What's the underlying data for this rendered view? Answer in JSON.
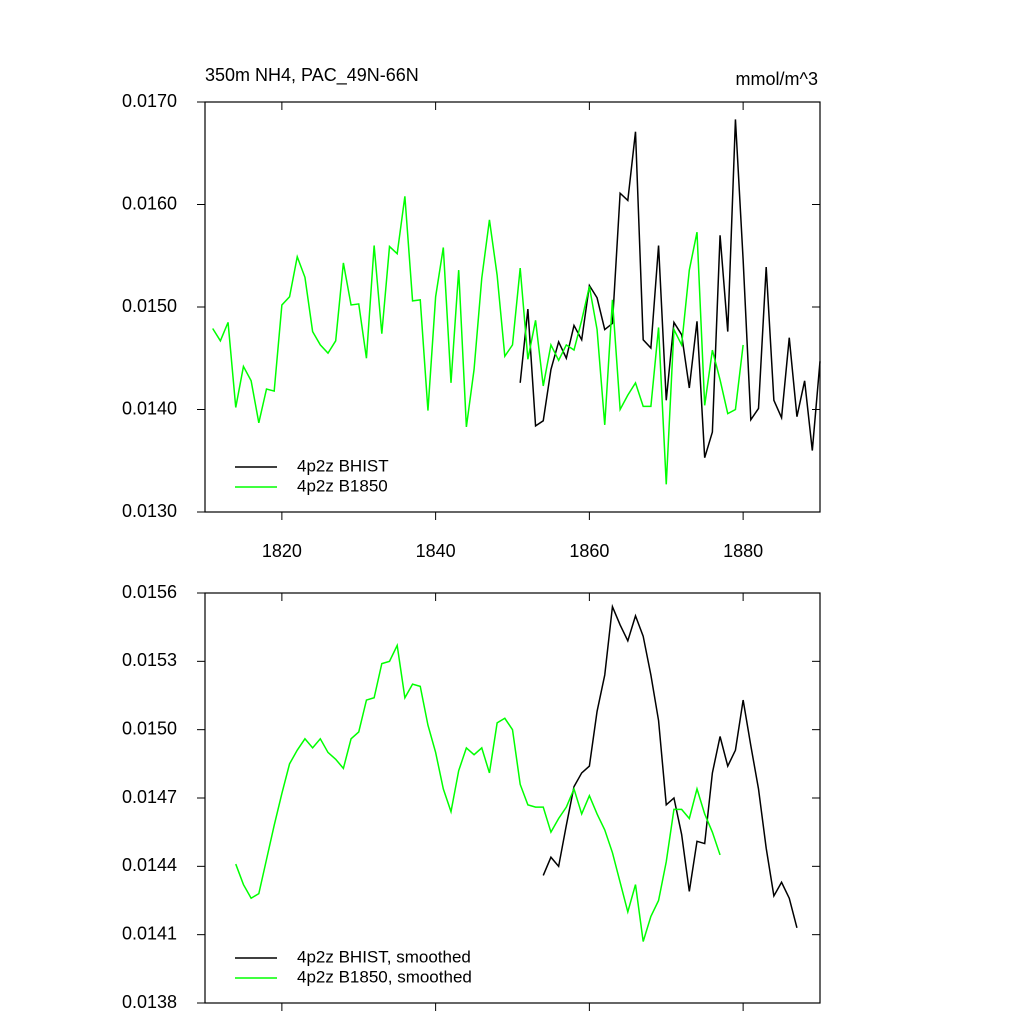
{
  "chart_data": [
    {
      "type": "line",
      "title": "350m NH4, PAC_49N-66N",
      "units": "mmol/m^3",
      "x": [
        1811,
        1812,
        1813,
        1814,
        1815,
        1816,
        1817,
        1818,
        1819,
        1820,
        1821,
        1822,
        1823,
        1824,
        1825,
        1826,
        1827,
        1828,
        1829,
        1830,
        1831,
        1832,
        1833,
        1834,
        1835,
        1836,
        1837,
        1838,
        1839,
        1840,
        1841,
        1842,
        1843,
        1844,
        1845,
        1846,
        1847,
        1848,
        1849,
        1850,
        1851,
        1852,
        1853,
        1854,
        1855,
        1856,
        1857,
        1858,
        1859,
        1860,
        1861,
        1862,
        1863,
        1864,
        1865,
        1866,
        1867,
        1868,
        1869,
        1870,
        1871,
        1872,
        1873,
        1874,
        1875,
        1876,
        1877,
        1878,
        1879,
        1880,
        1881,
        1882,
        1883,
        1884,
        1885,
        1886,
        1887,
        1888,
        1889,
        1890
      ],
      "series": [
        {
          "name": "4p2z BHIST",
          "color": "#000000",
          "values": [
            null,
            null,
            null,
            null,
            null,
            null,
            null,
            null,
            null,
            null,
            null,
            null,
            null,
            null,
            null,
            null,
            null,
            null,
            null,
            null,
            null,
            null,
            null,
            null,
            null,
            null,
            null,
            null,
            null,
            null,
            null,
            null,
            null,
            null,
            null,
            null,
            null,
            null,
            null,
            null,
            0.01426,
            0.01498,
            0.01384,
            0.01389,
            0.01439,
            0.01466,
            0.0145,
            0.01482,
            0.01468,
            0.01521,
            0.01509,
            0.01478,
            0.01484,
            0.01611,
            0.01604,
            0.01671,
            0.01468,
            0.0146,
            0.0156,
            0.01409,
            0.01485,
            0.01473,
            0.01421,
            0.01486,
            0.01353,
            0.01378,
            0.0157,
            0.01476,
            0.01683,
            0.01546,
            0.0139,
            0.01401,
            0.01539,
            0.01409,
            0.01392,
            0.0147,
            0.01393,
            0.01428,
            0.0136,
            0.01447
          ]
        },
        {
          "name": "4p2z B1850",
          "color": "#00ff00",
          "values": [
            0.01479,
            0.01467,
            0.01485,
            0.01402,
            0.01442,
            0.01428,
            0.01387,
            0.0142,
            0.01418,
            0.01502,
            0.0151,
            0.01549,
            0.01529,
            0.01476,
            0.01463,
            0.01455,
            0.01467,
            0.01543,
            0.01502,
            0.01503,
            0.0145,
            0.0156,
            0.01474,
            0.01559,
            0.01552,
            0.01608,
            0.01506,
            0.01507,
            0.01399,
            0.0151,
            0.01558,
            0.01426,
            0.01536,
            0.01383,
            0.01439,
            0.01528,
            0.01585,
            0.01531,
            0.01452,
            0.01463,
            0.01538,
            0.01449,
            0.01487,
            0.01423,
            0.01463,
            0.01448,
            0.01463,
            0.01458,
            0.01487,
            0.0152,
            0.01478,
            0.01385,
            0.01507,
            0.014,
            0.01414,
            0.01426,
            0.01403,
            0.01403,
            0.0148,
            0.01327,
            0.01478,
            0.01463,
            0.01536,
            0.01573,
            0.01404,
            0.01458,
            0.01429,
            0.01396,
            0.014,
            0.01463,
            null,
            null,
            null,
            null,
            null,
            null,
            null,
            null,
            null,
            null
          ]
        }
      ],
      "xlim": [
        1810,
        1890
      ],
      "xticks": [
        1820,
        1840,
        1860,
        1880
      ],
      "ylim": [
        0.013,
        0.017
      ],
      "yticks": [
        {
          "value": 0.013,
          "label": "0.0130"
        },
        {
          "value": 0.014,
          "label": "0.0140"
        },
        {
          "value": 0.015,
          "label": "0.0150"
        },
        {
          "value": 0.016,
          "label": "0.0160"
        },
        {
          "value": 0.017,
          "label": "0.0170"
        }
      ],
      "legend": "lower left"
    },
    {
      "type": "line",
      "x": [
        1814,
        1815,
        1816,
        1817,
        1818,
        1819,
        1820,
        1821,
        1822,
        1823,
        1824,
        1825,
        1826,
        1827,
        1828,
        1829,
        1830,
        1831,
        1832,
        1833,
        1834,
        1835,
        1836,
        1837,
        1838,
        1839,
        1840,
        1841,
        1842,
        1843,
        1844,
        1845,
        1846,
        1847,
        1848,
        1849,
        1850,
        1851,
        1852,
        1853,
        1854,
        1855,
        1856,
        1857,
        1858,
        1859,
        1860,
        1861,
        1862,
        1863,
        1864,
        1865,
        1866,
        1867,
        1868,
        1869,
        1870,
        1871,
        1872,
        1873,
        1874,
        1875,
        1876,
        1877,
        1878,
        1879,
        1880,
        1881,
        1882,
        1883,
        1884,
        1885,
        1886,
        1887
      ],
      "series": [
        {
          "name": "4p2z BHIST, smoothed",
          "color": "#000000",
          "values": [
            null,
            null,
            null,
            null,
            null,
            null,
            null,
            null,
            null,
            null,
            null,
            null,
            null,
            null,
            null,
            null,
            null,
            null,
            null,
            null,
            null,
            null,
            null,
            null,
            null,
            null,
            null,
            null,
            null,
            null,
            null,
            null,
            null,
            null,
            null,
            null,
            null,
            null,
            null,
            null,
            0.01436,
            0.01444,
            0.0144,
            0.01458,
            0.01475,
            0.01481,
            0.01484,
            0.01508,
            0.01524,
            0.01554,
            0.01546,
            0.01539,
            0.0155,
            0.01541,
            0.01524,
            0.01504,
            0.01467,
            0.0147,
            0.01454,
            0.01429,
            0.01451,
            0.0145,
            0.01481,
            0.01497,
            0.01484,
            0.01491,
            0.01513,
            0.01493,
            0.01474,
            0.01448,
            0.01427,
            0.01433,
            0.01426,
            0.01413
          ]
        },
        {
          "name": "4p2z B1850, smoothed",
          "color": "#00ff00",
          "values": [
            0.01441,
            0.01432,
            0.01426,
            0.01428,
            0.01443,
            0.01458,
            0.01472,
            0.01485,
            0.01491,
            0.01496,
            0.01492,
            0.01496,
            0.0149,
            0.01487,
            0.01483,
            0.01496,
            0.01499,
            0.01513,
            0.01514,
            0.01529,
            0.0153,
            0.01537,
            0.01514,
            0.0152,
            0.01519,
            0.01502,
            0.0149,
            0.01474,
            0.01464,
            0.01482,
            0.01492,
            0.01489,
            0.01492,
            0.01481,
            0.01503,
            0.01505,
            0.015,
            0.01476,
            0.01467,
            0.01466,
            0.01466,
            0.01455,
            0.01461,
            0.01466,
            0.01474,
            0.01463,
            0.01471,
            0.01463,
            0.01456,
            0.01446,
            0.01433,
            0.0142,
            0.01432,
            0.01407,
            0.01418,
            0.01425,
            0.01442,
            0.01465,
            0.01465,
            0.01461,
            0.01474,
            0.01463,
            0.01455,
            0.01445,
            null,
            null,
            null,
            null,
            null,
            null,
            null,
            null,
            null,
            null
          ]
        }
      ],
      "xlim": [
        1810,
        1890
      ],
      "xticks": [
        1820,
        1840,
        1860,
        1880
      ],
      "xtick_labels": false,
      "ylim": [
        0.0138,
        0.0156
      ],
      "yticks": [
        0.0138,
        0.0141,
        0.0144,
        0.0147,
        {
          "value": 0.015,
          "label": "0.0150"
        },
        0.0153,
        0.0156
      ],
      "legend": "lower left"
    }
  ]
}
